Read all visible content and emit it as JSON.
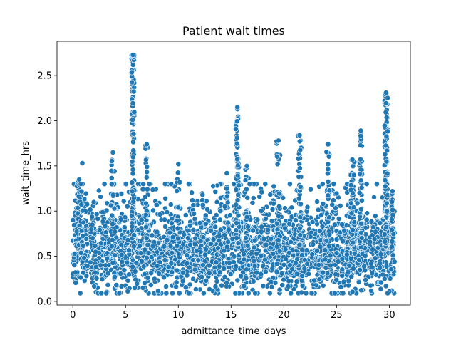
{
  "chart_data": {
    "type": "scatter",
    "title": "Patient wait times",
    "xlabel": "admittance_time_days",
    "ylabel": "wait_time_hrs",
    "xlim": [
      -1.5,
      32
    ],
    "ylim": [
      -0.04,
      2.88
    ],
    "xticks": [
      0,
      5,
      10,
      15,
      20,
      25,
      30
    ],
    "yticks": [
      0.0,
      0.5,
      1.0,
      1.5,
      2.0,
      2.5
    ],
    "xtick_labels": [
      "0",
      "5",
      "10",
      "15",
      "20",
      "25",
      "30"
    ],
    "ytick_labels": [
      "0.0",
      "0.5",
      "1.0",
      "1.5",
      "2.0",
      "2.5"
    ],
    "grid": false,
    "marker_color": "#1f77b4",
    "marker_edge_color": "#ffffff",
    "series": [
      {
        "points_note": "dense cloud of ~3000 points spanning x 0–30.5 days, y mostly 0.1–1.3 hrs; peaks near x≈5.7 (up to 2.73), x≈15.6 (up to 2.15), x≈29.7 (up to 2.31)",
        "x": [],
        "y": []
      }
    ]
  }
}
